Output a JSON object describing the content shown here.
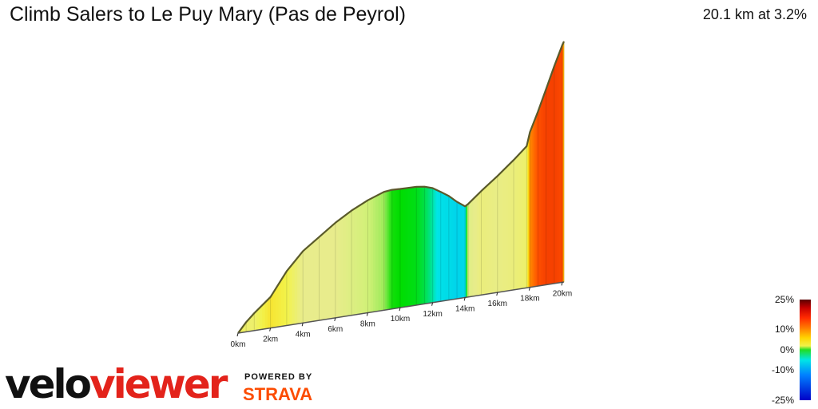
{
  "header": {
    "title": "Climb Salers to Le Puy Mary (Pas de Peyrol)",
    "summary": "20.1 km at 3.2%"
  },
  "legend": {
    "labels": [
      "25%",
      "10%",
      "0%",
      "-10%",
      "-25%"
    ]
  },
  "branding": {
    "velo": "velo",
    "viewer": "viewer",
    "powered_by": "POWERED BY",
    "strava": "STRAVA"
  },
  "colors": {
    "steep_descent": "#0000c8",
    "descent": "#00e6e6",
    "flat": "#00dd00",
    "gentle": "#e8ec8c",
    "moderate": "#f2f24a",
    "steep": "#ff5000",
    "very_steep": "#c40000"
  },
  "chart_data": {
    "type": "area",
    "title": "Climb Salers to Le Puy Mary (Pas de Peyrol)",
    "xlabel": "",
    "ylabel": "",
    "x_ticks": [
      "0km",
      "2km",
      "4km",
      "6km",
      "8km",
      "10km",
      "12km",
      "14km",
      "16km",
      "18km",
      "20km"
    ],
    "x_unit": "km",
    "xlim": [
      0,
      20.1
    ],
    "y_unit": "m elevation gain (approx.)",
    "ylim": [
      0,
      700
    ],
    "series": [
      {
        "distance_km": [
          0,
          0.5,
          1,
          2,
          3,
          4,
          5,
          6,
          7,
          8,
          9,
          9.5,
          10,
          11,
          11.5,
          12,
          12.5,
          13,
          13.5,
          14,
          14.2,
          15,
          16,
          17,
          17.8,
          18,
          18.5,
          19,
          19.5,
          20,
          20.1
        ],
        "elevation_m": [
          0,
          25,
          45,
          80,
          140,
          185,
          215,
          245,
          270,
          290,
          305,
          307,
          306,
          305,
          302,
          295,
          282,
          268,
          250,
          235,
          240,
          268,
          300,
          335,
          365,
          400,
          450,
          505,
          560,
          612,
          620
        ],
        "gradient_pct": [
          5,
          4,
          4,
          6,
          5,
          3,
          3,
          3,
          2.5,
          2,
          1.5,
          0.2,
          0,
          -0.2,
          -0.6,
          -1.4,
          -2.5,
          -2.8,
          -3.5,
          -3,
          2.5,
          3.5,
          3.2,
          3.5,
          4,
          9,
          10,
          11,
          11,
          10.5,
          8
        ]
      }
    ],
    "grid": false,
    "legend": "colour scale bottom-right (-25% to 25%)"
  }
}
